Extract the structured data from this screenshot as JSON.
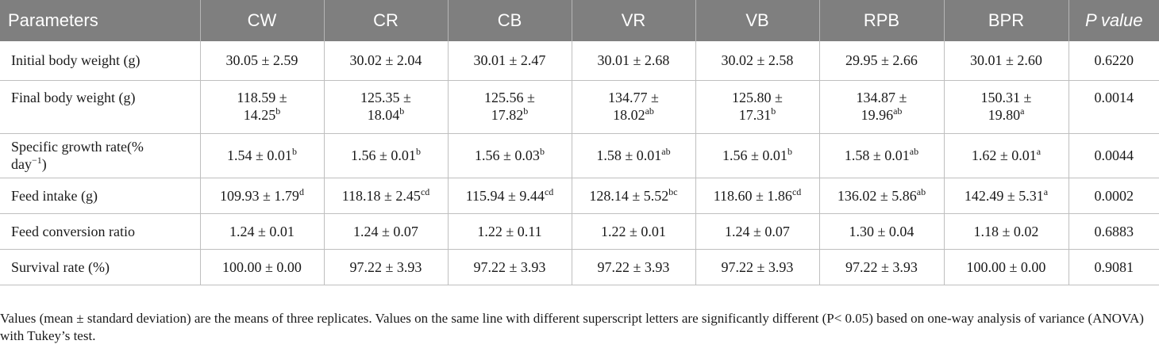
{
  "table": {
    "headers": [
      "Parameters",
      "CW",
      "CR",
      "CB",
      "VR",
      "VB",
      "RPB",
      "BPR",
      "P value"
    ],
    "rows": [
      {
        "label": "Initial body weight (g)",
        "cells": [
          {
            "v1": "30.05 ± 2.59",
            "v2": "",
            "sup": ""
          },
          {
            "v1": "30.02 ± 2.04",
            "v2": "",
            "sup": ""
          },
          {
            "v1": "30.01 ± 2.47",
            "v2": "",
            "sup": ""
          },
          {
            "v1": "30.01 ± 2.68",
            "v2": "",
            "sup": ""
          },
          {
            "v1": "30.02 ± 2.58",
            "v2": "",
            "sup": ""
          },
          {
            "v1": "29.95 ± 2.66",
            "v2": "",
            "sup": ""
          },
          {
            "v1": "30.01 ± 2.60",
            "v2": "",
            "sup": ""
          }
        ],
        "p": "0.6220"
      },
      {
        "label": "Final body weight (g)",
        "cells": [
          {
            "v1": "118.59 ±",
            "v2": "14.25",
            "sup": "b"
          },
          {
            "v1": "125.35 ±",
            "v2": "18.04",
            "sup": "b"
          },
          {
            "v1": "125.56 ±",
            "v2": "17.82",
            "sup": "b"
          },
          {
            "v1": "134.77 ±",
            "v2": "18.02",
            "sup": "ab"
          },
          {
            "v1": "125.80 ±",
            "v2": "17.31",
            "sup": "b"
          },
          {
            "v1": "134.87 ±",
            "v2": "19.96",
            "sup": "ab"
          },
          {
            "v1": "150.31 ±",
            "v2": "19.80",
            "sup": "a"
          }
        ],
        "p": "0.0014"
      },
      {
        "label": "Specific growth rate(%",
        "label2": "day",
        "label2_sup": "−1",
        "label2_tail": ")",
        "cells": [
          {
            "v1": "1.54 ± 0.01",
            "v2": "",
            "sup": "b"
          },
          {
            "v1": "1.56 ± 0.01",
            "v2": "",
            "sup": "b"
          },
          {
            "v1": "1.56 ± 0.03",
            "v2": "",
            "sup": "b"
          },
          {
            "v1": "1.58 ± 0.01",
            "v2": "",
            "sup": "ab"
          },
          {
            "v1": "1.56 ± 0.01",
            "v2": "",
            "sup": "b"
          },
          {
            "v1": "1.58 ± 0.01",
            "v2": "",
            "sup": "ab"
          },
          {
            "v1": "1.62 ± 0.01",
            "v2": "",
            "sup": "a"
          }
        ],
        "p": "0.0044"
      },
      {
        "label": "Feed intake (g)",
        "cells": [
          {
            "v1": "109.93 ± 1.79",
            "v2": "",
            "sup": "d"
          },
          {
            "v1": "118.18 ± 2.45",
            "v2": "",
            "sup": "cd"
          },
          {
            "v1": "115.94 ± 9.44",
            "v2": "",
            "sup": "cd"
          },
          {
            "v1": "128.14 ± 5.52",
            "v2": "",
            "sup": "bc"
          },
          {
            "v1": "118.60 ± 1.86",
            "v2": "",
            "sup": "cd"
          },
          {
            "v1": "136.02 ± 5.86",
            "v2": "",
            "sup": "ab"
          },
          {
            "v1": "142.49 ± 5.31",
            "v2": "",
            "sup": "a"
          }
        ],
        "p": "0.0002"
      },
      {
        "label": "Feed conversion ratio",
        "cells": [
          {
            "v1": "1.24 ± 0.01",
            "v2": "",
            "sup": ""
          },
          {
            "v1": "1.24 ± 0.07",
            "v2": "",
            "sup": ""
          },
          {
            "v1": "1.22 ± 0.11",
            "v2": "",
            "sup": ""
          },
          {
            "v1": "1.22 ± 0.01",
            "v2": "",
            "sup": ""
          },
          {
            "v1": "1.24 ± 0.07",
            "v2": "",
            "sup": ""
          },
          {
            "v1": "1.30 ± 0.04",
            "v2": "",
            "sup": ""
          },
          {
            "v1": "1.18 ± 0.02",
            "v2": "",
            "sup": ""
          }
        ],
        "p": "0.6883"
      },
      {
        "label": "Survival rate (%)",
        "cells": [
          {
            "v1": "100.00 ± 0.00",
            "v2": "",
            "sup": ""
          },
          {
            "v1": "97.22 ± 3.93",
            "v2": "",
            "sup": ""
          },
          {
            "v1": "97.22 ± 3.93",
            "v2": "",
            "sup": ""
          },
          {
            "v1": "97.22 ± 3.93",
            "v2": "",
            "sup": ""
          },
          {
            "v1": "97.22 ± 3.93",
            "v2": "",
            "sup": ""
          },
          {
            "v1": "97.22 ± 3.93",
            "v2": "",
            "sup": ""
          },
          {
            "v1": "100.00 ± 0.00",
            "v2": "",
            "sup": ""
          }
        ],
        "p": "0.9081"
      }
    ]
  },
  "caption": "Values (mean ± standard deviation) are the means of three replicates. Values on the same line with different superscript letters are significantly different (P< 0.05) based on one-way analysis of variance (ANOVA) with Tukey’s test.",
  "colors": {
    "header_bg": "#7f7f7f",
    "header_text": "#ffffff",
    "grid": "#bfbfbf"
  }
}
